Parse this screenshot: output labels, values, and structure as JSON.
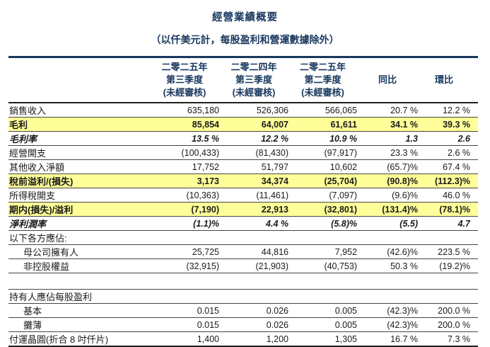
{
  "title": "經營業績概要",
  "subtitle": "（以仟美元計，每股盈利和營運數據除外）",
  "colors": {
    "heading_navy": "#17375E",
    "highlight_yellow": "#FFFF99",
    "text": "#1a1a1a"
  },
  "table": {
    "columns": [
      {
        "lines": [
          "二零二五年",
          "第三季度",
          "(未經審核)"
        ]
      },
      {
        "lines": [
          "二零二四年",
          "第三季度",
          "(未經審核)"
        ]
      },
      {
        "lines": [
          "二零二五年",
          "第二季度",
          "(未經審核)"
        ]
      },
      {
        "lines": [
          "同比"
        ]
      },
      {
        "lines": [
          "環比"
        ]
      }
    ],
    "rows": [
      {
        "label": "銷售收入",
        "values": [
          "635,180",
          "526,306",
          "566,065",
          "20.7 %",
          "12.2 %"
        ]
      },
      {
        "label": "毛利",
        "values": [
          "85,854",
          "64,007",
          "61,611",
          "34.1 %",
          "39.3 %"
        ]
      },
      {
        "label": "毛利率",
        "values": [
          "13.5 %",
          "12.2 %",
          "10.9 %",
          "1.3",
          "2.6"
        ]
      },
      {
        "label": "經營開支",
        "values": [
          "(100,433)",
          "(81,430)",
          "(97,917)",
          "23.3 %",
          "2.6 %"
        ]
      },
      {
        "label": "其他收入淨額",
        "values": [
          "17,752",
          "51,797",
          "10,602",
          "(65.7)%",
          "67.4 %"
        ]
      },
      {
        "label": "稅前溢利/(損失)",
        "values": [
          "3,173",
          "34,374",
          "(25,704)",
          "(90.8)%",
          "(112.3)%"
        ]
      },
      {
        "label": "所得稅開支",
        "values": [
          "(10,363)",
          "(11,461)",
          "(7,097)",
          "(9.6)%",
          "46.0 %"
        ]
      },
      {
        "label": "期内(損失)/溢利",
        "values": [
          "(7,190)",
          "22,913",
          "(32,801)",
          "(131.4)%",
          "(78.1)%"
        ]
      },
      {
        "label": "淨利潤率",
        "values": [
          "(1.1)%",
          "4.4 %",
          "(5.8)%",
          "(5.5)",
          "4.7"
        ]
      },
      {
        "label": "以下各方應佔:",
        "values": [
          "",
          "",
          "",
          "",
          ""
        ]
      },
      {
        "label": "母公司擁有人",
        "values": [
          "25,725",
          "44,816",
          "7,952",
          "(42.6)%",
          "223.5 %"
        ]
      },
      {
        "label": "非控股權益",
        "values": [
          "(32,915)",
          "(21,903)",
          "(40,753)",
          "50.3 %",
          "(19.2)%"
        ]
      },
      {
        "label": "持有人應佔每股盈利",
        "values": [
          "",
          "",
          "",
          "",
          ""
        ]
      },
      {
        "label": "基本",
        "values": [
          "0.015",
          "0.026",
          "0.005",
          "(42.3)%",
          "200.0 %"
        ]
      },
      {
        "label": "攤薄",
        "values": [
          "0.015",
          "0.026",
          "0.005",
          "(42.3)%",
          "200.0 %"
        ]
      },
      {
        "label": "付運晶圓(折合 8 吋仟片)",
        "values": [
          "1,400",
          "1,200",
          "1,305",
          "16.7 %",
          "7.3 %"
        ]
      }
    ]
  }
}
